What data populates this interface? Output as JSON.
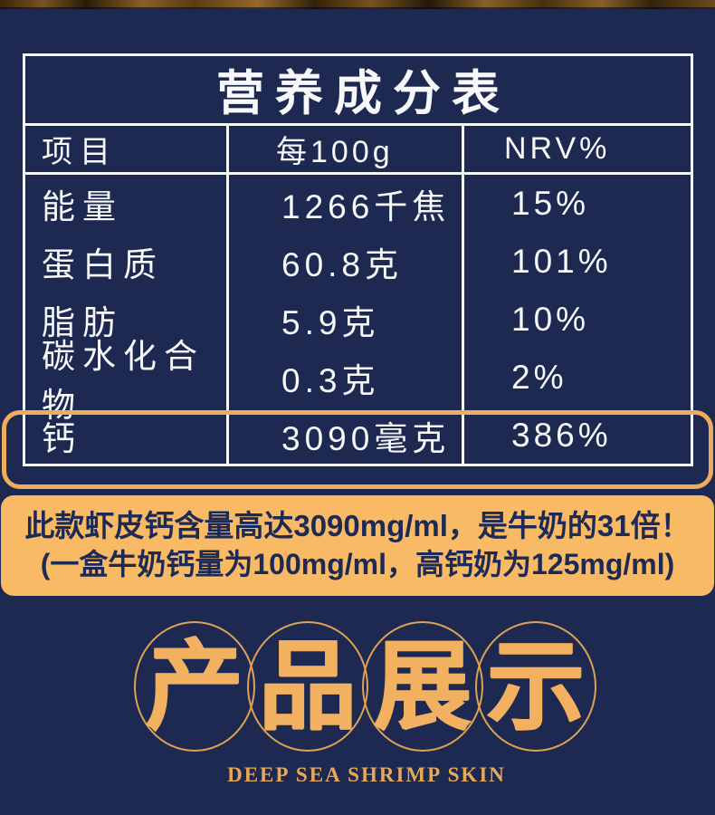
{
  "colors": {
    "background_navy": "#1e2951",
    "table_border_white": "#f7f8fa",
    "highlight_ring_orange": "#f0ab5c",
    "callout_fill_orange": "#f8ba64",
    "callout_text_navy": "#1d2a55",
    "art_gold": "#f2b161",
    "subtitle_gold": "#e7a857"
  },
  "nutrition_table": {
    "title": "营养成分表",
    "columns": {
      "item": "项目",
      "per": "每100g",
      "nrv": "NRV%"
    },
    "rows": [
      {
        "item": "能量",
        "per": "1266千焦",
        "nrv": "15%"
      },
      {
        "item": "蛋白质",
        "per": "60.8克",
        "nrv": "101%"
      },
      {
        "item": "脂肪",
        "per": "5.9克",
        "nrv": "10%"
      },
      {
        "item": "碳水化合物",
        "per": "0.3克",
        "nrv": "2%"
      },
      {
        "item": "钙",
        "per": "3090毫克",
        "nrv": "386%"
      }
    ],
    "highlighted_row": "钙"
  },
  "callout": {
    "line1": "此款虾皮钙含量高达3090mg/ml，是牛奶的31倍！",
    "line2": "(一盒牛奶钙量为100mg/ml，高钙奶为125mg/ml)"
  },
  "section_title": {
    "characters": [
      "产",
      "品",
      "展",
      "示"
    ],
    "subtitle": "DEEP SEA SHRIMP SKIN"
  }
}
